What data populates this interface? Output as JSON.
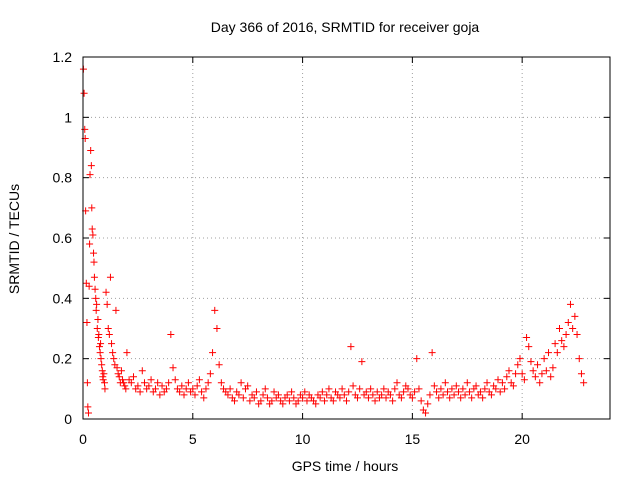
{
  "chart_data": {
    "type": "scatter",
    "title": "Day 366 of 2016, SRMTID for receiver goja",
    "xlabel": "GPS time / hours",
    "ylabel": "SRMTID / TECUs",
    "xlim": [
      0,
      24
    ],
    "ylim": [
      0,
      1.2
    ],
    "xticks": [
      0,
      5,
      10,
      15,
      20
    ],
    "xtick_labels": [
      "0",
      "5",
      "10",
      "15",
      "20"
    ],
    "yticks": [
      0,
      0.2,
      0.4,
      0.6,
      0.8,
      1.0,
      1.2
    ],
    "ytick_labels": [
      "0",
      "0.2",
      "0.4",
      "0.6",
      "0.8",
      "1",
      "1.2"
    ],
    "grid": true,
    "marker": "+",
    "marker_color": "#ff0000",
    "series": [
      {
        "name": "SRMTID",
        "x": [
          0.02,
          0.05,
          0.08,
          0.1,
          0.12,
          0.15,
          0.18,
          0.2,
          0.22,
          0.25,
          0.28,
          0.3,
          0.32,
          0.35,
          0.38,
          0.4,
          0.42,
          0.45,
          0.48,
          0.5,
          0.52,
          0.55,
          0.58,
          0.6,
          0.62,
          0.65,
          0.68,
          0.7,
          0.72,
          0.75,
          0.78,
          0.8,
          0.82,
          0.85,
          0.88,
          0.9,
          0.92,
          0.95,
          0.98,
          1.0,
          1.05,
          1.1,
          1.15,
          1.2,
          1.25,
          1.3,
          1.35,
          1.4,
          1.45,
          1.5,
          1.55,
          1.6,
          1.65,
          1.7,
          1.75,
          1.8,
          1.85,
          1.9,
          1.95,
          2.0,
          2.1,
          2.2,
          2.3,
          2.4,
          2.5,
          2.6,
          2.7,
          2.8,
          2.9,
          3.0,
          3.1,
          3.2,
          3.3,
          3.4,
          3.5,
          3.6,
          3.7,
          3.8,
          3.9,
          4.0,
          4.1,
          4.2,
          4.3,
          4.4,
          4.5,
          4.6,
          4.7,
          4.8,
          4.9,
          5.0,
          5.1,
          5.2,
          5.3,
          5.4,
          5.5,
          5.6,
          5.7,
          5.8,
          5.9,
          6.0,
          6.1,
          6.2,
          6.3,
          6.4,
          6.5,
          6.6,
          6.7,
          6.8,
          6.9,
          7.0,
          7.1,
          7.2,
          7.3,
          7.4,
          7.5,
          7.6,
          7.7,
          7.8,
          7.9,
          8.0,
          8.1,
          8.2,
          8.3,
          8.4,
          8.5,
          8.6,
          8.7,
          8.8,
          8.9,
          9.0,
          9.1,
          9.2,
          9.3,
          9.4,
          9.5,
          9.6,
          9.7,
          9.8,
          9.9,
          10.0,
          10.1,
          10.2,
          10.3,
          10.4,
          10.5,
          10.6,
          10.7,
          10.8,
          10.9,
          11.0,
          11.1,
          11.2,
          11.3,
          11.4,
          11.5,
          11.6,
          11.7,
          11.8,
          11.9,
          12.0,
          12.1,
          12.2,
          12.3,
          12.4,
          12.5,
          12.6,
          12.7,
          12.8,
          12.9,
          13.0,
          13.1,
          13.2,
          13.3,
          13.4,
          13.5,
          13.6,
          13.7,
          13.8,
          13.9,
          14.0,
          14.1,
          14.2,
          14.3,
          14.4,
          14.5,
          14.6,
          14.7,
          14.8,
          14.9,
          15.0,
          15.1,
          15.2,
          15.3,
          15.4,
          15.5,
          15.6,
          15.7,
          15.8,
          15.9,
          16.0,
          16.1,
          16.2,
          16.3,
          16.4,
          16.5,
          16.6,
          16.7,
          16.8,
          16.9,
          17.0,
          17.1,
          17.2,
          17.3,
          17.4,
          17.5,
          17.6,
          17.7,
          17.8,
          17.9,
          18.0,
          18.1,
          18.2,
          18.3,
          18.4,
          18.5,
          18.6,
          18.7,
          18.8,
          18.9,
          19.0,
          19.1,
          19.2,
          19.3,
          19.4,
          19.5,
          19.6,
          19.7,
          19.8,
          19.9,
          20.0,
          20.1,
          20.2,
          20.3,
          20.4,
          20.5,
          20.6,
          20.7,
          20.8,
          20.9,
          21.0,
          21.1,
          21.2,
          21.3,
          21.4,
          21.5,
          21.6,
          21.7,
          21.8,
          21.9,
          22.0,
          22.1,
          22.2,
          22.3,
          22.4,
          22.5,
          22.6,
          22.7,
          22.8
        ],
        "y": [
          1.16,
          1.08,
          0.96,
          0.93,
          0.69,
          0.45,
          0.32,
          0.12,
          0.04,
          0.02,
          0.44,
          0.58,
          0.81,
          0.89,
          0.84,
          0.7,
          0.63,
          0.61,
          0.55,
          0.52,
          0.47,
          0.43,
          0.4,
          0.36,
          0.38,
          0.3,
          0.33,
          0.27,
          0.28,
          0.24,
          0.22,
          0.25,
          0.2,
          0.18,
          0.16,
          0.14,
          0.13,
          0.15,
          0.12,
          0.1,
          0.42,
          0.38,
          0.3,
          0.28,
          0.47,
          0.25,
          0.22,
          0.2,
          0.18,
          0.36,
          0.17,
          0.15,
          0.14,
          0.12,
          0.16,
          0.13,
          0.12,
          0.11,
          0.1,
          0.22,
          0.13,
          0.12,
          0.14,
          0.1,
          0.11,
          0.09,
          0.16,
          0.12,
          0.1,
          0.11,
          0.13,
          0.09,
          0.1,
          0.12,
          0.08,
          0.11,
          0.09,
          0.1,
          0.12,
          0.28,
          0.17,
          0.13,
          0.1,
          0.09,
          0.11,
          0.08,
          0.1,
          0.12,
          0.09,
          0.1,
          0.08,
          0.11,
          0.13,
          0.09,
          0.07,
          0.1,
          0.12,
          0.15,
          0.22,
          0.36,
          0.3,
          0.18,
          0.12,
          0.1,
          0.09,
          0.08,
          0.1,
          0.07,
          0.06,
          0.09,
          0.08,
          0.12,
          0.07,
          0.1,
          0.11,
          0.06,
          0.08,
          0.07,
          0.09,
          0.05,
          0.06,
          0.08,
          0.1,
          0.07,
          0.05,
          0.06,
          0.09,
          0.07,
          0.08,
          0.06,
          0.05,
          0.07,
          0.08,
          0.06,
          0.09,
          0.07,
          0.05,
          0.06,
          0.08,
          0.07,
          0.09,
          0.06,
          0.08,
          0.07,
          0.06,
          0.05,
          0.08,
          0.07,
          0.09,
          0.06,
          0.08,
          0.1,
          0.07,
          0.06,
          0.09,
          0.08,
          0.07,
          0.1,
          0.08,
          0.06,
          0.09,
          0.24,
          0.11,
          0.08,
          0.07,
          0.1,
          0.19,
          0.08,
          0.09,
          0.07,
          0.1,
          0.08,
          0.06,
          0.09,
          0.07,
          0.08,
          0.1,
          0.07,
          0.09,
          0.08,
          0.06,
          0.1,
          0.12,
          0.08,
          0.07,
          0.09,
          0.11,
          0.1,
          0.08,
          0.07,
          0.09,
          0.2,
          0.1,
          0.06,
          0.03,
          0.02,
          0.05,
          0.08,
          0.22,
          0.11,
          0.09,
          0.07,
          0.1,
          0.08,
          0.12,
          0.09,
          0.07,
          0.1,
          0.08,
          0.11,
          0.09,
          0.07,
          0.1,
          0.08,
          0.12,
          0.09,
          0.07,
          0.1,
          0.11,
          0.08,
          0.09,
          0.07,
          0.1,
          0.12,
          0.09,
          0.08,
          0.11,
          0.1,
          0.13,
          0.09,
          0.12,
          0.1,
          0.14,
          0.16,
          0.12,
          0.11,
          0.15,
          0.18,
          0.2,
          0.15,
          0.13,
          0.27,
          0.24,
          0.19,
          0.16,
          0.14,
          0.18,
          0.12,
          0.15,
          0.2,
          0.16,
          0.22,
          0.14,
          0.17,
          0.25,
          0.22,
          0.3,
          0.26,
          0.24,
          0.28,
          0.32,
          0.38,
          0.3,
          0.34,
          0.28,
          0.2,
          0.15,
          0.12
        ]
      }
    ]
  }
}
